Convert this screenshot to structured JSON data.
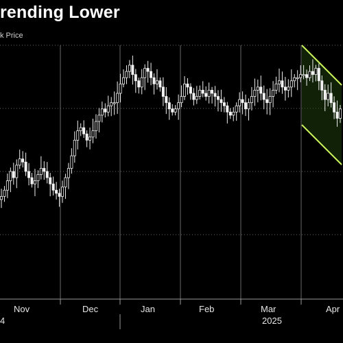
{
  "title": "rending Lower",
  "subtitle": "k Price",
  "colors": {
    "background": "#000000",
    "candle": "#f2f2f2",
    "channel": "#c9f25a",
    "channel_fill": "#1f3d0d",
    "grid": "#6a6a6a"
  },
  "chart_data": {
    "type": "candlestick",
    "title": "rending Lower",
    "subtitle": "k Price",
    "x_ticks": [
      "Nov",
      "Dec",
      "Jan",
      "Feb",
      "Mar",
      "Apr"
    ],
    "year_labels": [
      "4",
      "2025"
    ],
    "grid": true,
    "y_range": [
      0,
      100
    ],
    "series_close": [
      58,
      60,
      63,
      66,
      64,
      68,
      70,
      69,
      66,
      64,
      62,
      63,
      65,
      67,
      66,
      64,
      62,
      60,
      59,
      58,
      61,
      64,
      67,
      71,
      76,
      79,
      80,
      78,
      76,
      77,
      79,
      82,
      84,
      86,
      85,
      87,
      88,
      88,
      91,
      94,
      96,
      98,
      100,
      97,
      95,
      93,
      96,
      99,
      98,
      96,
      94,
      95,
      93,
      90,
      88,
      86,
      85,
      86,
      88,
      90,
      94,
      93,
      91,
      89,
      90,
      92,
      91,
      90,
      92,
      91,
      90,
      89,
      88,
      87,
      85,
      84,
      85,
      87,
      89,
      88,
      86,
      88,
      90,
      92,
      93,
      91,
      89,
      88,
      90,
      92,
      94,
      95,
      93,
      92,
      93,
      95,
      96,
      96,
      97,
      97,
      96,
      98,
      97,
      99,
      95,
      92,
      89,
      91,
      88,
      85,
      83,
      86
    ],
    "channel": {
      "upper_start": 100,
      "upper_end": 95,
      "lower_start": 84,
      "lower_end": 78
    }
  }
}
